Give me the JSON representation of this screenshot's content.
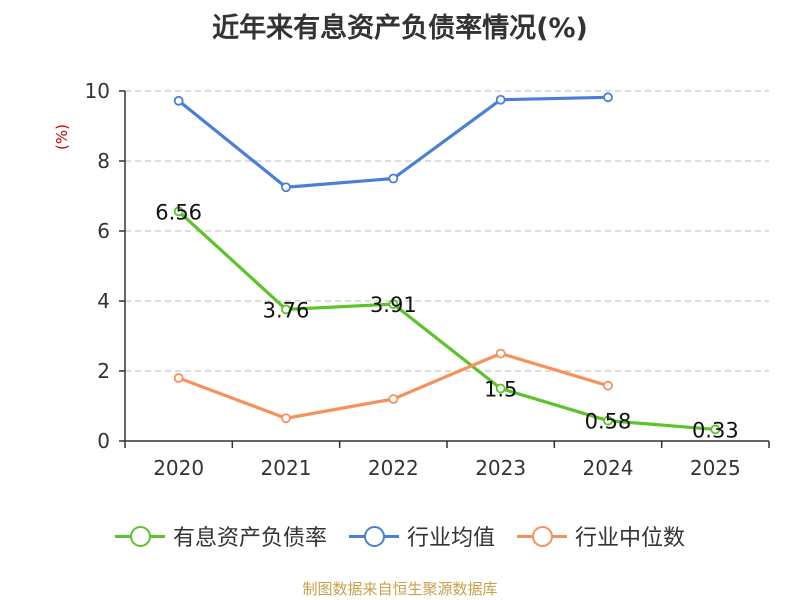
{
  "chart_data": {
    "type": "line",
    "title": "近年来有息资产负债率情况(%)",
    "ylabel": "(%)",
    "categories": [
      "2020",
      "2021",
      "2022",
      "2023",
      "2024",
      "2025"
    ],
    "ylim": [
      0,
      10
    ],
    "yticks": [
      0,
      2,
      4,
      6,
      8,
      10
    ],
    "grid": true,
    "legend_position": "bottom",
    "series": [
      {
        "name": "有息资产负债率",
        "color": "#5ec22b",
        "values": [
          6.56,
          3.76,
          3.91,
          1.5,
          0.58,
          0.33
        ],
        "labels": [
          "6.56",
          "3.76",
          "3.91",
          "1.5",
          "0.58",
          "0.33"
        ]
      },
      {
        "name": "行业均值",
        "color": "#4a7fd8",
        "values": [
          9.72,
          7.25,
          7.5,
          9.75,
          9.82,
          null
        ]
      },
      {
        "name": "行业中位数",
        "color": "#f5915a",
        "values": [
          1.8,
          0.65,
          1.2,
          2.5,
          1.58,
          null
        ]
      }
    ]
  },
  "source": "制图数据来自恒生聚源数据库"
}
